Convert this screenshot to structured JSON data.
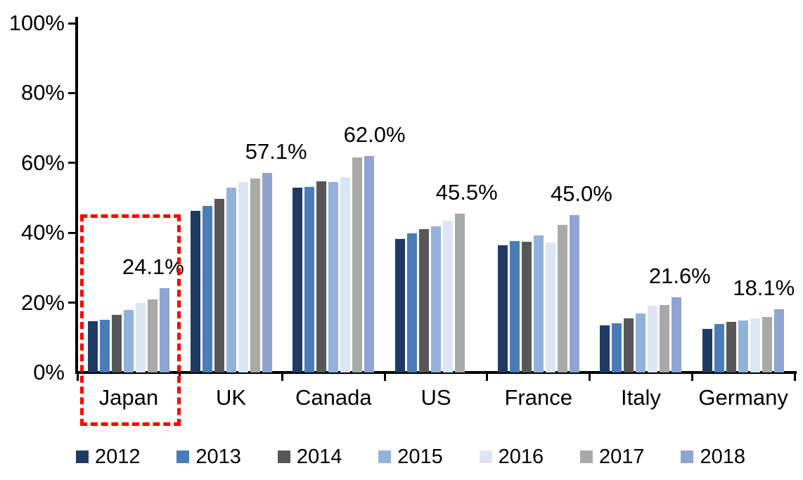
{
  "chart_data": {
    "type": "bar",
    "title": "",
    "xlabel": "",
    "ylabel": "",
    "ylim": [
      0,
      100
    ],
    "grid": false,
    "legend_position": "bottom",
    "yticks": [
      "0%",
      "20%",
      "40%",
      "60%",
      "80%",
      "100%"
    ],
    "categories": [
      "Japan",
      "UK",
      "Canada",
      "US",
      "France",
      "Italy",
      "Germany"
    ],
    "series": [
      {
        "name": "2012",
        "color": "#1F3B63",
        "values": [
          14.6,
          46.3,
          53.0,
          38.2,
          36.5,
          13.4,
          12.4
        ]
      },
      {
        "name": "2013",
        "color": "#4A7CBA",
        "values": [
          15.0,
          47.6,
          53.2,
          39.8,
          37.6,
          14.1,
          13.8
        ]
      },
      {
        "name": "2014",
        "color": "#575757",
        "values": [
          16.6,
          49.7,
          54.7,
          41.0,
          37.5,
          15.4,
          14.4
        ]
      },
      {
        "name": "2015",
        "color": "#94B2D9",
        "values": [
          18.0,
          53.0,
          54.5,
          41.8,
          39.2,
          17.0,
          14.8
        ]
      },
      {
        "name": "2016",
        "color": "#DCE6F2",
        "values": [
          20.0,
          54.5,
          56.0,
          43.4,
          37.2,
          19.1,
          15.4
        ]
      },
      {
        "name": "2017",
        "color": "#A9A9A9",
        "values": [
          21.0,
          55.6,
          61.5,
          45.5,
          42.3,
          19.3,
          15.9
        ]
      },
      {
        "name": "2018",
        "color": "#90A4CF",
        "values": [
          24.1,
          57.1,
          62.0,
          null,
          45.0,
          21.6,
          18.1
        ]
      }
    ],
    "value_labels": [
      "24.1%",
      "57.1%",
      "62.0%",
      "45.5%",
      "45.0%",
      "21.6%",
      "18.1%"
    ],
    "annotations": {
      "highlight_box": {
        "category": "Japan",
        "color": "#FF0000",
        "style": "dashed"
      }
    }
  },
  "colors": {
    "axis": "#000000",
    "text": "#000000",
    "highlight": "#FF0000"
  }
}
